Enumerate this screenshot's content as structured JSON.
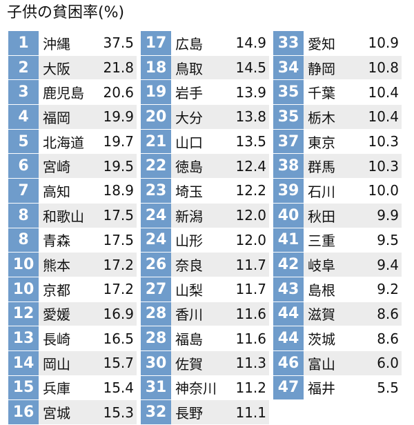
{
  "title": "子供の貧困率(%)",
  "columns": [
    [
      {
        "rank": "1",
        "pref": "沖縄",
        "value": "37.5"
      },
      {
        "rank": "2",
        "pref": "大阪",
        "value": "21.8"
      },
      {
        "rank": "3",
        "pref": "鹿児島",
        "value": "20.6"
      },
      {
        "rank": "4",
        "pref": "福岡",
        "value": "19.9"
      },
      {
        "rank": "5",
        "pref": "北海道",
        "value": "19.7"
      },
      {
        "rank": "6",
        "pref": "宮崎",
        "value": "19.5"
      },
      {
        "rank": "7",
        "pref": "高知",
        "value": "18.9"
      },
      {
        "rank": "8",
        "pref": "和歌山",
        "value": "17.5"
      },
      {
        "rank": "8",
        "pref": "青森",
        "value": "17.5"
      },
      {
        "rank": "10",
        "pref": "熊本",
        "value": "17.2"
      },
      {
        "rank": "10",
        "pref": "京都",
        "value": "17.2"
      },
      {
        "rank": "12",
        "pref": "愛媛",
        "value": "16.9"
      },
      {
        "rank": "13",
        "pref": "長崎",
        "value": "16.5"
      },
      {
        "rank": "14",
        "pref": "岡山",
        "value": "15.7"
      },
      {
        "rank": "15",
        "pref": "兵庫",
        "value": "15.4"
      },
      {
        "rank": "16",
        "pref": "宮城",
        "value": "15.3"
      }
    ],
    [
      {
        "rank": "17",
        "pref": "広島",
        "value": "14.9"
      },
      {
        "rank": "18",
        "pref": "鳥取",
        "value": "14.5"
      },
      {
        "rank": "19",
        "pref": "岩手",
        "value": "13.9"
      },
      {
        "rank": "20",
        "pref": "大分",
        "value": "13.8"
      },
      {
        "rank": "21",
        "pref": "山口",
        "value": "13.5"
      },
      {
        "rank": "22",
        "pref": "徳島",
        "value": "12.4"
      },
      {
        "rank": "23",
        "pref": "埼玉",
        "value": "12.2"
      },
      {
        "rank": "24",
        "pref": "新潟",
        "value": "12.0"
      },
      {
        "rank": "24",
        "pref": "山形",
        "value": "12.0"
      },
      {
        "rank": "26",
        "pref": "奈良",
        "value": "11.7"
      },
      {
        "rank": "27",
        "pref": "山梨",
        "value": "11.7"
      },
      {
        "rank": "28",
        "pref": "香川",
        "value": "11.6"
      },
      {
        "rank": "28",
        "pref": "福島",
        "value": "11.6"
      },
      {
        "rank": "30",
        "pref": "佐賀",
        "value": "11.3"
      },
      {
        "rank": "31",
        "pref": "神奈川",
        "value": "11.2"
      },
      {
        "rank": "32",
        "pref": "長野",
        "value": "11.1"
      }
    ],
    [
      {
        "rank": "33",
        "pref": "愛知",
        "value": "10.9"
      },
      {
        "rank": "34",
        "pref": "静岡",
        "value": "10.8"
      },
      {
        "rank": "35",
        "pref": "千葉",
        "value": "10.4"
      },
      {
        "rank": "35",
        "pref": "栃木",
        "value": "10.4"
      },
      {
        "rank": "37",
        "pref": "東京",
        "value": "10.3"
      },
      {
        "rank": "38",
        "pref": "群馬",
        "value": "10.3"
      },
      {
        "rank": "39",
        "pref": "石川",
        "value": "10.0"
      },
      {
        "rank": "40",
        "pref": "秋田",
        "value": "9.9"
      },
      {
        "rank": "41",
        "pref": "三重",
        "value": "9.5"
      },
      {
        "rank": "42",
        "pref": "岐阜",
        "value": "9.4"
      },
      {
        "rank": "43",
        "pref": "島根",
        "value": "9.2"
      },
      {
        "rank": "44",
        "pref": "滋賀",
        "value": "8.6"
      },
      {
        "rank": "44",
        "pref": "茨城",
        "value": "8.6"
      },
      {
        "rank": "46",
        "pref": "富山",
        "value": "6.0"
      },
      {
        "rank": "47",
        "pref": "福井",
        "value": "5.5"
      }
    ]
  ]
}
